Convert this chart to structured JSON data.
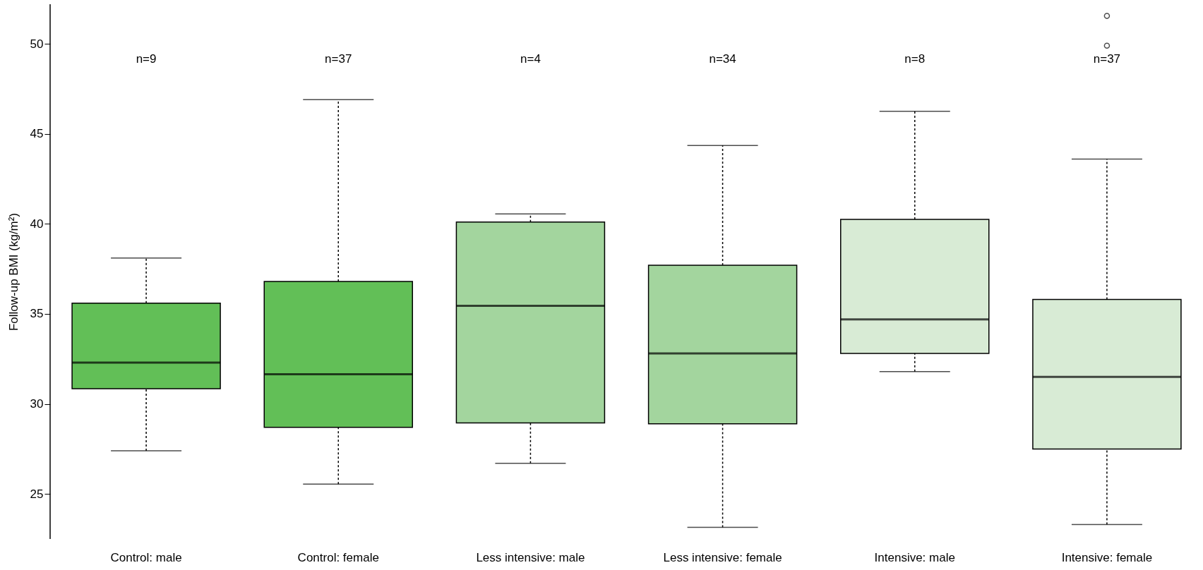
{
  "chart_data": {
    "type": "box",
    "ylabel": "Follow-up BMI (kg/m²)",
    "categories": [
      "Control: male",
      "Control: female",
      "Less intensive: male",
      "Less intensive: female",
      "Intensive: male",
      "Intensive: female"
    ],
    "colors": [
      "#62bf57",
      "#62bf57",
      "#a3d59e",
      "#a3d59e",
      "#d8ebd5",
      "#d8ebd5"
    ],
    "boxes": [
      {
        "low": 27.4,
        "q1": 30.85,
        "median": 32.3,
        "q3": 35.6,
        "high": 38.1
      },
      {
        "low": 25.55,
        "q1": 28.7,
        "median": 31.65,
        "q3": 36.8,
        "high": 46.9
      },
      {
        "low": 26.7,
        "q1": 28.95,
        "median": 35.45,
        "q3": 40.1,
        "high": 40.55
      },
      {
        "low": 23.15,
        "q1": 28.9,
        "median": 32.8,
        "q3": 37.7,
        "high": 44.35
      },
      {
        "low": 31.8,
        "q1": 32.8,
        "median": 34.7,
        "q3": 40.25,
        "high": 46.25
      },
      {
        "low": 23.3,
        "q1": 27.5,
        "median": 31.5,
        "q3": 35.8,
        "high": 43.6,
        "outliers": [
          49.9,
          51.55
        ]
      }
    ],
    "ylim": [
      22.5,
      52.2
    ],
    "yticks": [
      25,
      30,
      35,
      40,
      45,
      50
    ],
    "annotations": [
      "n=9",
      "n=37",
      "n=4",
      "n=34",
      "n=8",
      "n=37"
    ],
    "marker": "circle"
  }
}
